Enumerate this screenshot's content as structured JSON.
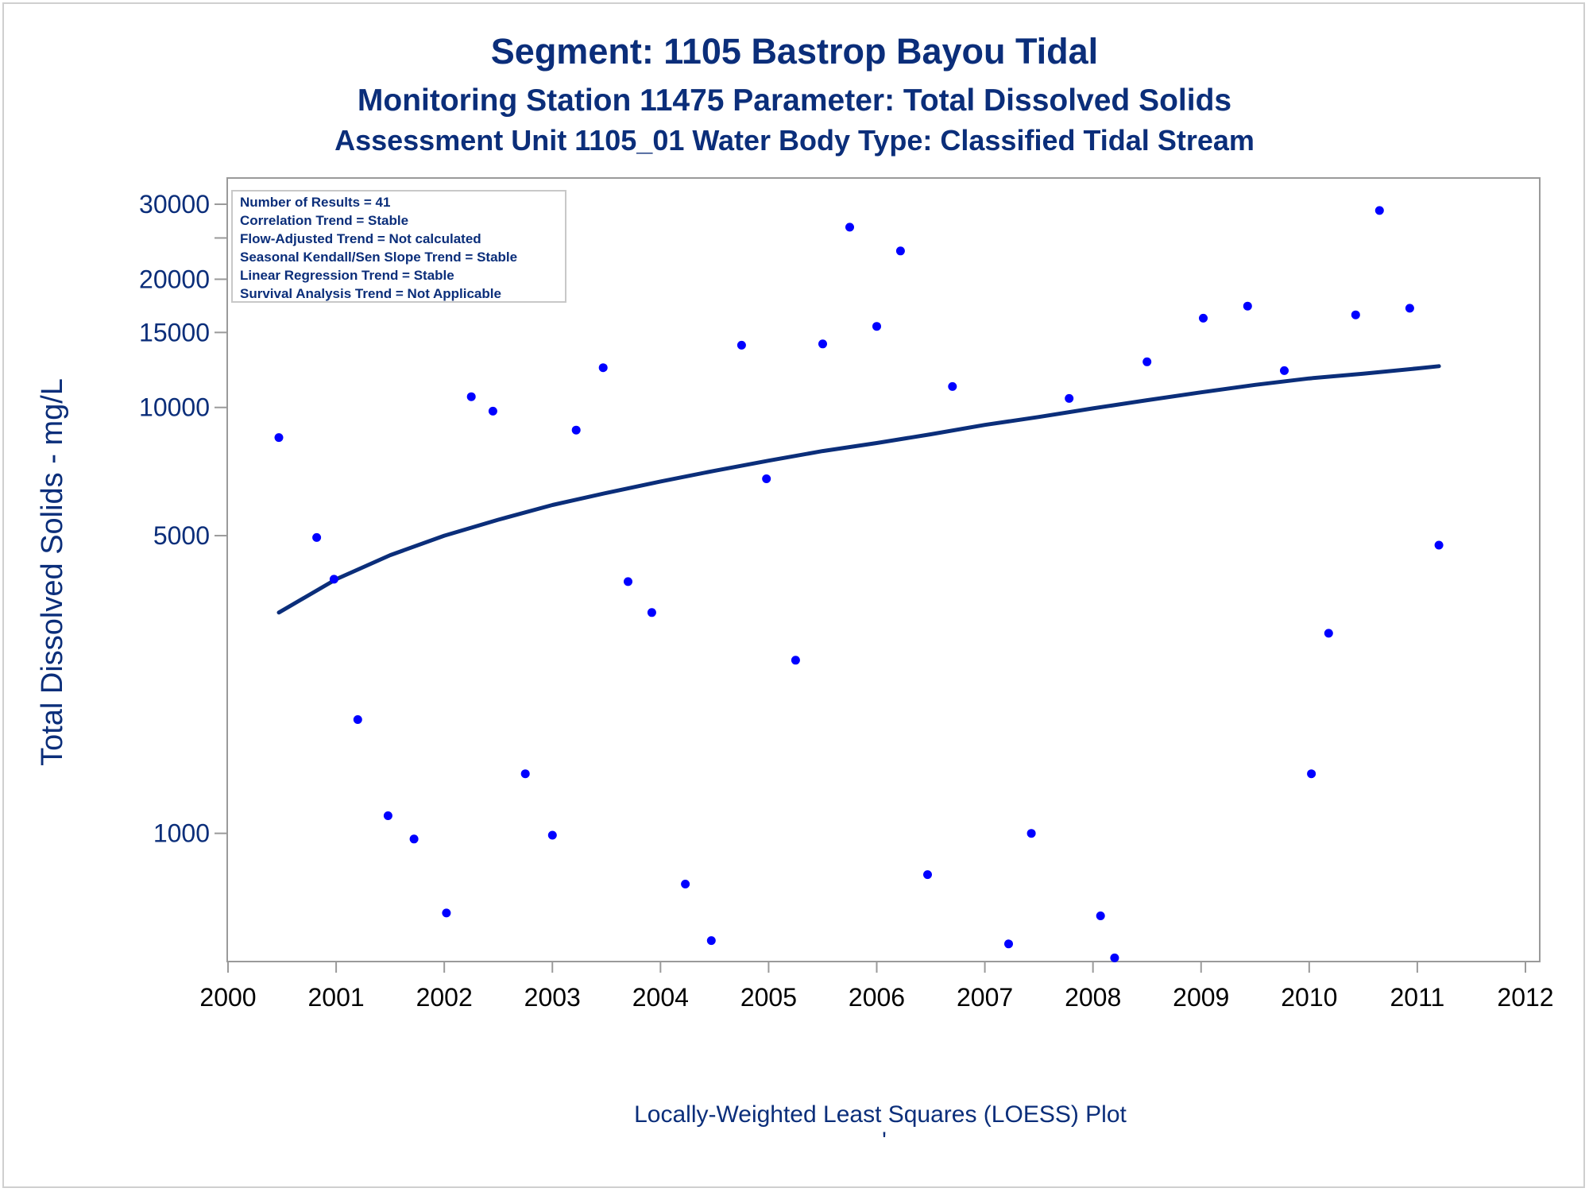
{
  "titles": {
    "line1": "Segment: 1105  Bastrop Bayou Tidal",
    "line2": "Monitoring Station 11475 Parameter: Total Dissolved Solids",
    "line3": "Assessment Unit 1105_01   Water Body Type: Classified Tidal Stream"
  },
  "stats_box": [
    "Number of Results = 41",
    "Correlation Trend = Stable",
    "Flow-Adjusted Trend = Not calculated",
    "Seasonal Kendall/Sen Slope Trend = Stable",
    "Linear Regression Trend = Stable",
    "Survival Analysis Trend = Not Applicable"
  ],
  "caption": "Locally-Weighted Least Squares (LOESS) Plot",
  "caption_mark": "'",
  "colors": {
    "points": "#0000ff",
    "curve": "#0b2e7a",
    "text": "#0b2e7a",
    "axis": "#9a9a9a"
  },
  "chart_data": {
    "type": "scatter",
    "ylabel": "Total Dissolved Solids - mg/L",
    "xlabel": "",
    "y_scale": "log",
    "xlim": [
      2000,
      2012
    ],
    "ylim": [
      500,
      32000
    ],
    "x_ticks": [
      2000,
      2001,
      2002,
      2003,
      2004,
      2005,
      2006,
      2007,
      2008,
      2009,
      2010,
      2011,
      2012
    ],
    "y_tick_labels": [
      {
        "value": 1000,
        "label": "1000"
      },
      {
        "value": 5000,
        "label": "5000"
      },
      {
        "value": 10000,
        "label": "10000"
      },
      {
        "value": 15000,
        "label": "15000"
      },
      {
        "value": 20000,
        "label": "20000"
      },
      {
        "value": 30000,
        "label": "30000"
      }
    ],
    "y_minor_ticks": [
      25000
    ],
    "grid": false,
    "points": [
      {
        "x": 2000.47,
        "y": 8500
      },
      {
        "x": 2000.82,
        "y": 4950
      },
      {
        "x": 2000.98,
        "y": 3950
      },
      {
        "x": 2001.2,
        "y": 1850
      },
      {
        "x": 2001.48,
        "y": 1100
      },
      {
        "x": 2001.72,
        "y": 970
      },
      {
        "x": 2002.02,
        "y": 650
      },
      {
        "x": 2002.25,
        "y": 10600
      },
      {
        "x": 2002.45,
        "y": 9800
      },
      {
        "x": 2002.75,
        "y": 1380
      },
      {
        "x": 2003.0,
        "y": 990
      },
      {
        "x": 2003.22,
        "y": 8850
      },
      {
        "x": 2003.47,
        "y": 12400
      },
      {
        "x": 2003.7,
        "y": 3900
      },
      {
        "x": 2003.92,
        "y": 3300
      },
      {
        "x": 2004.23,
        "y": 760
      },
      {
        "x": 2004.47,
        "y": 560
      },
      {
        "x": 2004.75,
        "y": 14000
      },
      {
        "x": 2004.98,
        "y": 6800
      },
      {
        "x": 2005.25,
        "y": 2550
      },
      {
        "x": 2005.5,
        "y": 14100
      },
      {
        "x": 2005.75,
        "y": 26500
      },
      {
        "x": 2006.0,
        "y": 15500
      },
      {
        "x": 2006.22,
        "y": 23300
      },
      {
        "x": 2006.47,
        "y": 800
      },
      {
        "x": 2006.7,
        "y": 11200
      },
      {
        "x": 2007.22,
        "y": 550
      },
      {
        "x": 2007.43,
        "y": 1000
      },
      {
        "x": 2007.78,
        "y": 10500
      },
      {
        "x": 2008.07,
        "y": 640
      },
      {
        "x": 2008.2,
        "y": 510
      },
      {
        "x": 2008.5,
        "y": 12800
      },
      {
        "x": 2009.02,
        "y": 16200
      },
      {
        "x": 2009.43,
        "y": 17300
      },
      {
        "x": 2009.77,
        "y": 12200
      },
      {
        "x": 2010.02,
        "y": 1380
      },
      {
        "x": 2010.18,
        "y": 2950
      },
      {
        "x": 2010.43,
        "y": 16500
      },
      {
        "x": 2010.65,
        "y": 29000
      },
      {
        "x": 2010.93,
        "y": 17100
      },
      {
        "x": 2011.2,
        "y": 4750
      }
    ],
    "loess_curve": [
      {
        "x": 2000.47,
        "y": 3300
      },
      {
        "x": 2001.0,
        "y": 3950
      },
      {
        "x": 2001.5,
        "y": 4500
      },
      {
        "x": 2002.0,
        "y": 5000
      },
      {
        "x": 2002.5,
        "y": 5450
      },
      {
        "x": 2003.0,
        "y": 5900
      },
      {
        "x": 2003.5,
        "y": 6300
      },
      {
        "x": 2004.0,
        "y": 6700
      },
      {
        "x": 2004.5,
        "y": 7100
      },
      {
        "x": 2005.0,
        "y": 7500
      },
      {
        "x": 2005.5,
        "y": 7900
      },
      {
        "x": 2006.0,
        "y": 8250
      },
      {
        "x": 2006.5,
        "y": 8650
      },
      {
        "x": 2007.0,
        "y": 9100
      },
      {
        "x": 2007.5,
        "y": 9500
      },
      {
        "x": 2008.0,
        "y": 9950
      },
      {
        "x": 2008.5,
        "y": 10400
      },
      {
        "x": 2009.0,
        "y": 10850
      },
      {
        "x": 2009.5,
        "y": 11300
      },
      {
        "x": 2010.0,
        "y": 11700
      },
      {
        "x": 2010.5,
        "y": 12000
      },
      {
        "x": 2011.0,
        "y": 12350
      },
      {
        "x": 2011.2,
        "y": 12500
      }
    ]
  }
}
